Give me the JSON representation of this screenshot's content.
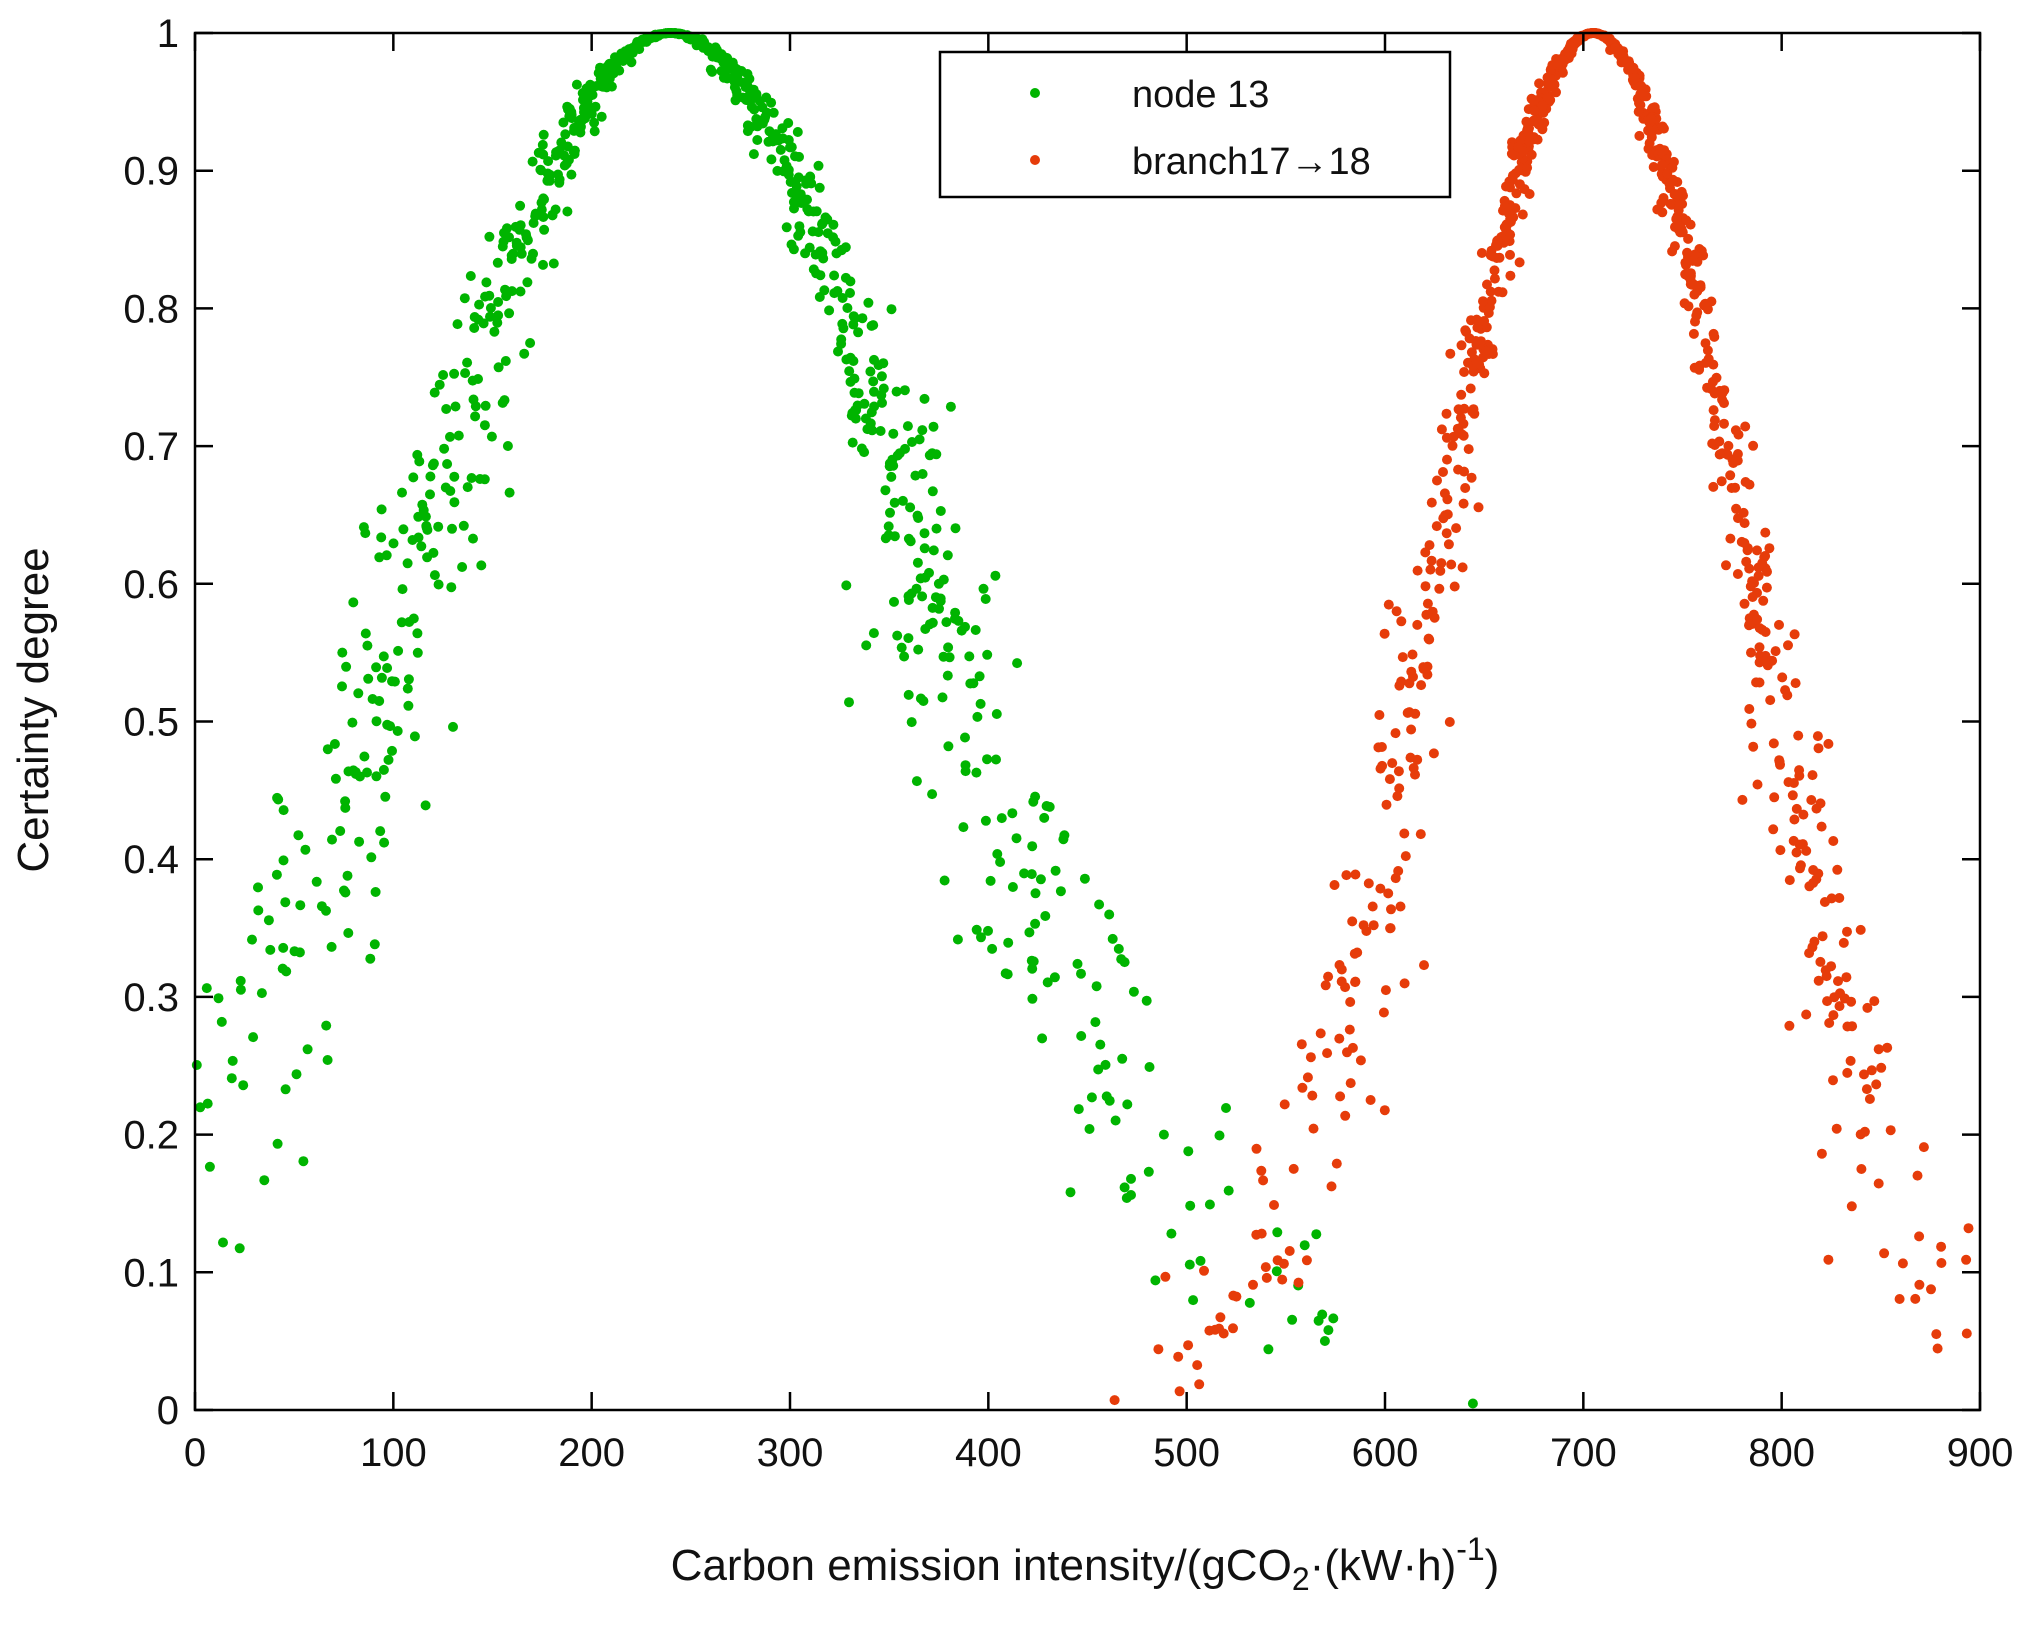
{
  "chart_data": {
    "type": "scatter",
    "title": "",
    "xlabel": "Carbon emission intensity/(gCO",
    "xlabel_sub": "2",
    "xlabel_mid": "·(kW·h)",
    "xlabel_sup": "-1",
    "xlabel_end": ")",
    "ylabel": "Certainty degree",
    "xlim": [
      0,
      900
    ],
    "ylim": [
      0,
      1
    ],
    "xticks": [
      0,
      100,
      200,
      300,
      400,
      500,
      600,
      700,
      800,
      900
    ],
    "xtick_labels": [
      "0",
      "100",
      "200",
      "300",
      "400",
      "500",
      "600",
      "700",
      "800",
      "900"
    ],
    "yticks": [
      0,
      0.1,
      0.2,
      0.3,
      0.4,
      0.5,
      0.6,
      0.7,
      0.8,
      0.9,
      1
    ],
    "ytick_labels": [
      "0",
      "0.1",
      "0.2",
      "0.3",
      "0.4",
      "0.5",
      "0.6",
      "0.7",
      "0.8",
      "0.9",
      "1"
    ],
    "grid": false,
    "legend_position": "top-right",
    "legend": [
      {
        "label": "node 13",
        "color": "#00b400"
      },
      {
        "label": "branch17→18",
        "color": "#e63c0a"
      }
    ],
    "series": [
      {
        "name": "node 13",
        "color": "#00b400",
        "model": "cloud-normal",
        "expectation": 240,
        "entropy": 130,
        "hyper_entropy": 15,
        "x_range": [
          0,
          805
        ],
        "point_count": 900
      },
      {
        "name": "branch17→18",
        "color": "#e63c0a",
        "model": "cloud-normal",
        "expectation": 705,
        "entropy": 80,
        "hyper_entropy": 7,
        "x_range": [
          415,
          900
        ],
        "point_count": 900
      }
    ]
  }
}
